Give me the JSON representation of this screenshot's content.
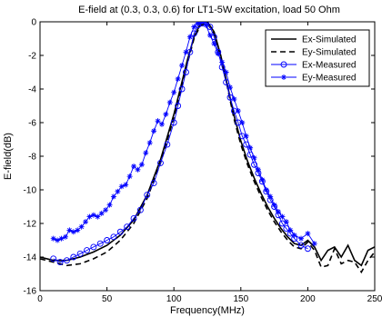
{
  "chart_data": {
    "type": "line",
    "title": "E-field at (0.3, 0.3, 0.6) for LT1-5W excitation, load 50 Ohm",
    "xlabel": "Frequency(MHz)",
    "ylabel": "E-field(dB)",
    "xlim": [
      0,
      250
    ],
    "ylim": [
      -16,
      0
    ],
    "xticks": [
      0,
      50,
      100,
      150,
      200,
      250
    ],
    "yticks": [
      0,
      -2,
      -4,
      -6,
      -8,
      -10,
      -12,
      -14,
      -16
    ],
    "grid": false,
    "legend_position": "top-right",
    "series": [
      {
        "name": "Ex-Simulated",
        "style": "solid",
        "color": "#000000",
        "marker": "none",
        "x": [
          0,
          10,
          20,
          30,
          40,
          50,
          60,
          70,
          80,
          90,
          100,
          105,
          110,
          115,
          120,
          125,
          130,
          135,
          140,
          145,
          150,
          155,
          160,
          165,
          170,
          175,
          180,
          185,
          190,
          195,
          200,
          205,
          210,
          215,
          220,
          225,
          230,
          235,
          240,
          245,
          250
        ],
        "values": [
          -14.0,
          -14.2,
          -14.2,
          -14.0,
          -13.7,
          -13.3,
          -12.7,
          -11.8,
          -10.3,
          -8.2,
          -5.5,
          -3.9,
          -2.3,
          -0.9,
          -0.1,
          0.0,
          -0.6,
          -2.0,
          -3.8,
          -5.6,
          -7.1,
          -8.3,
          -9.3,
          -10.2,
          -11.0,
          -11.7,
          -12.3,
          -12.8,
          -13.2,
          -13.3,
          -13.0,
          -13.4,
          -14.2,
          -13.6,
          -13.4,
          -14.0,
          -13.3,
          -14.2,
          -14.5,
          -13.6,
          -13.4
        ]
      },
      {
        "name": "Ey-Simulated",
        "style": "dashed",
        "color": "#000000",
        "marker": "none",
        "x": [
          0,
          10,
          20,
          30,
          40,
          50,
          60,
          70,
          80,
          90,
          100,
          105,
          110,
          115,
          120,
          125,
          130,
          135,
          140,
          145,
          150,
          155,
          160,
          165,
          170,
          175,
          180,
          185,
          190,
          195,
          200,
          205,
          210,
          215,
          220,
          225,
          230,
          235,
          240,
          245,
          250
        ],
        "values": [
          -14.1,
          -14.3,
          -14.5,
          -14.4,
          -14.1,
          -13.7,
          -13.0,
          -12.0,
          -10.5,
          -8.4,
          -5.7,
          -4.1,
          -2.5,
          -1.0,
          -0.2,
          -0.1,
          -0.7,
          -2.1,
          -3.9,
          -5.8,
          -7.3,
          -8.5,
          -9.5,
          -10.4,
          -11.2,
          -11.9,
          -12.5,
          -13.0,
          -13.4,
          -13.5,
          -13.1,
          -13.6,
          -14.6,
          -14.5,
          -13.5,
          -14.4,
          -14.2,
          -14.3,
          -14.9,
          -14.2,
          -13.7
        ]
      },
      {
        "name": "Ex-Measured",
        "style": "solid",
        "color": "#0000ff",
        "marker": "circle",
        "x": [
          10,
          15,
          20,
          25,
          30,
          35,
          40,
          45,
          50,
          55,
          60,
          65,
          70,
          75,
          80,
          85,
          90,
          95,
          100,
          103,
          106,
          109,
          112,
          115,
          118,
          121,
          124,
          127,
          130,
          133,
          136,
          139,
          142,
          145,
          148,
          151,
          154,
          157,
          160,
          163,
          166,
          169,
          172,
          175,
          178,
          181,
          184,
          187,
          190,
          195,
          200
        ],
        "values": [
          -14.1,
          -14.3,
          -14.2,
          -14.0,
          -13.8,
          -13.6,
          -13.4,
          -13.2,
          -13.0,
          -12.8,
          -12.5,
          -12.2,
          -11.7,
          -11.2,
          -10.3,
          -9.6,
          -8.4,
          -7.3,
          -6.0,
          -5.0,
          -4.0,
          -3.0,
          -1.8,
          -0.7,
          -0.2,
          -0.1,
          0.0,
          -0.3,
          -0.9,
          -1.8,
          -2.7,
          -3.6,
          -4.5,
          -5.3,
          -6.0,
          -6.8,
          -7.3,
          -7.9,
          -8.5,
          -9.0,
          -9.5,
          -10.1,
          -10.6,
          -11.0,
          -11.5,
          -12.0,
          -12.3,
          -12.6,
          -12.9,
          -13.3,
          -13.5
        ]
      },
      {
        "name": "Ey-Measured",
        "style": "solid",
        "color": "#0000ff",
        "marker": "star",
        "x": [
          10,
          13,
          16,
          19,
          22,
          25,
          28,
          31,
          34,
          37,
          40,
          43,
          46,
          49,
          52,
          55,
          58,
          61,
          64,
          67,
          70,
          73,
          76,
          79,
          82,
          85,
          88,
          91,
          94,
          97,
          100,
          103,
          106,
          109,
          112,
          115,
          118,
          121,
          124,
          127,
          130,
          133,
          136,
          139,
          142,
          145,
          148,
          151,
          154,
          157,
          160,
          163,
          166,
          169,
          172,
          175,
          178,
          181,
          184,
          187,
          190,
          195,
          200,
          205
        ],
        "values": [
          -12.9,
          -13.0,
          -12.9,
          -12.8,
          -12.4,
          -12.5,
          -12.4,
          -12.2,
          -11.9,
          -11.6,
          -11.5,
          -11.6,
          -11.4,
          -11.2,
          -10.9,
          -10.4,
          -10.1,
          -9.8,
          -9.7,
          -9.2,
          -8.6,
          -8.8,
          -8.5,
          -7.8,
          -7.2,
          -6.5,
          -5.9,
          -6.1,
          -5.5,
          -4.8,
          -4.2,
          -3.4,
          -2.6,
          -1.8,
          -0.9,
          -0.3,
          -0.1,
          0.0,
          -0.2,
          -0.8,
          -1.3,
          -1.9,
          -2.4,
          -3.0,
          -3.9,
          -4.6,
          -5.3,
          -6.0,
          -6.8,
          -7.5,
          -8.1,
          -8.8,
          -9.4,
          -10.0,
          -10.4,
          -10.9,
          -11.3,
          -11.6,
          -11.9,
          -12.4,
          -12.7,
          -12.9,
          -12.6,
          -13.2
        ]
      }
    ]
  }
}
